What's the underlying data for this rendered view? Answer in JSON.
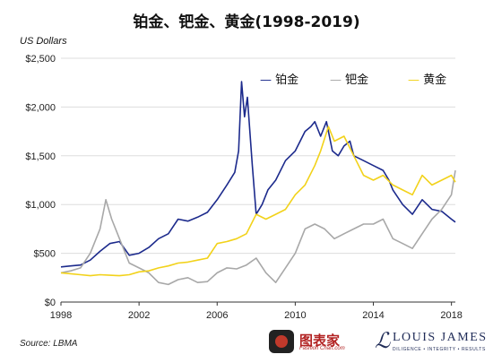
{
  "chart_data": {
    "type": "line",
    "title": "铂金、钯金、黄金(1998-2019)",
    "ylabel": "US Dollars",
    "source": "Source: LBMA",
    "xlim": [
      1998,
      2018.2
    ],
    "ylim": [
      0,
      2500
    ],
    "x_ticks": [
      "1998",
      "2002",
      "2006",
      "2010",
      "2014",
      "2018"
    ],
    "y_ticks": [
      "$0",
      "$500",
      "$1,000",
      "$1,500",
      "$2,000",
      "$2,500"
    ],
    "grid": true,
    "legend_position": "top-right",
    "colors": {
      "platinum": "#1c2a8c",
      "palladium": "#a8a8a8",
      "gold": "#f2d21a",
      "grid": "#dddddd"
    },
    "series": [
      {
        "name": "铂金",
        "key": "platinum",
        "x": [
          1998,
          1998.5,
          1999,
          1999.5,
          2000,
          2000.5,
          2001,
          2001.5,
          2002,
          2002.5,
          2003,
          2003.5,
          2004,
          2004.5,
          2005,
          2005.5,
          2006,
          2006.5,
          2006.9,
          2007.1,
          2007.25,
          2007.4,
          2007.55,
          2007.8,
          2008,
          2008.3,
          2008.6,
          2009,
          2009.5,
          2010,
          2010.5,
          2010.8,
          2011,
          2011.3,
          2011.6,
          2011.9,
          2012.2,
          2012.5,
          2012.8,
          2013,
          2013.5,
          2014,
          2014.5,
          2014.8,
          2015,
          2015.5,
          2016,
          2016.5,
          2017,
          2017.5,
          2018,
          2018.2
        ],
        "y": [
          360,
          370,
          380,
          430,
          520,
          600,
          620,
          480,
          500,
          560,
          650,
          700,
          850,
          830,
          870,
          920,
          1050,
          1200,
          1330,
          1550,
          2260,
          1900,
          2100,
          1400,
          900,
          1000,
          1150,
          1250,
          1450,
          1550,
          1750,
          1800,
          1850,
          1700,
          1850,
          1550,
          1500,
          1600,
          1650,
          1500,
          1450,
          1400,
          1350,
          1250,
          1150,
          1000,
          900,
          1050,
          950,
          930,
          850,
          820
        ]
      },
      {
        "name": "钯金",
        "key": "palladium",
        "x": [
          1998,
          1998.5,
          1999,
          1999.5,
          2000,
          2000.3,
          2000.6,
          2001,
          2001.5,
          2002,
          2002.5,
          2003,
          2003.5,
          2004,
          2004.5,
          2005,
          2005.5,
          2006,
          2006.5,
          2007,
          2007.5,
          2008,
          2008.5,
          2009,
          2009.5,
          2010,
          2010.5,
          2011,
          2011.5,
          2012,
          2012.5,
          2013,
          2013.5,
          2014,
          2014.5,
          2015,
          2015.5,
          2016,
          2016.5,
          2017,
          2017.5,
          2018,
          2018.2
        ],
        "y": [
          300,
          320,
          350,
          500,
          750,
          1050,
          850,
          650,
          400,
          350,
          300,
          200,
          180,
          230,
          250,
          200,
          210,
          300,
          350,
          340,
          380,
          450,
          300,
          200,
          350,
          500,
          750,
          800,
          750,
          650,
          700,
          750,
          800,
          800,
          850,
          650,
          600,
          550,
          700,
          850,
          950,
          1100,
          1350
        ]
      },
      {
        "name": "黄金",
        "key": "gold",
        "x": [
          1998,
          1998.5,
          1999,
          1999.5,
          2000,
          2000.5,
          2001,
          2001.5,
          2002,
          2002.5,
          2003,
          2003.5,
          2004,
          2004.5,
          2005,
          2005.5,
          2006,
          2006.5,
          2007,
          2007.5,
          2008,
          2008.5,
          2009,
          2009.5,
          2010,
          2010.5,
          2011,
          2011.3,
          2011.7,
          2012,
          2012.5,
          2013,
          2013.5,
          2014,
          2014.5,
          2015,
          2015.5,
          2016,
          2016.5,
          2017,
          2017.5,
          2018,
          2018.2
        ],
        "y": [
          300,
          290,
          280,
          270,
          280,
          275,
          270,
          280,
          310,
          320,
          350,
          370,
          400,
          410,
          430,
          450,
          600,
          620,
          650,
          700,
          900,
          850,
          900,
          950,
          1100,
          1200,
          1400,
          1550,
          1800,
          1650,
          1700,
          1500,
          1300,
          1250,
          1300,
          1200,
          1150,
          1100,
          1300,
          1200,
          1250,
          1300,
          1230
        ]
      }
    ]
  },
  "watermark": {
    "logo_text": "图表家",
    "logo_subtext": "Fashion Chart.com",
    "brand_text": "LOUIS JAMES",
    "brand_tagline": "DILIGENCE • INTEGRITY • RESULTS"
  }
}
